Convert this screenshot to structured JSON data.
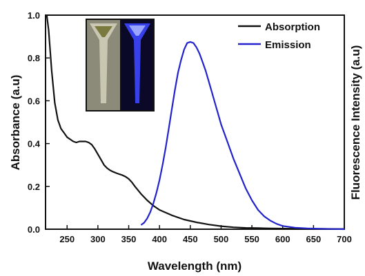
{
  "chart_data": {
    "type": "line",
    "xlabel": "Wavelength (nm)",
    "ylabel": "Absorbance (a.u)",
    "y2label": "Fluorescence Intensity (a.u)",
    "xlim": [
      215,
      700
    ],
    "ylim": [
      0.0,
      1.0
    ],
    "xticks": [
      250,
      300,
      350,
      400,
      450,
      500,
      550,
      600,
      650,
      700
    ],
    "yticks": [
      "0.0",
      "0.2",
      "0.4",
      "0.6",
      "0.8",
      "1.0"
    ],
    "legend_position": "top-right",
    "inset": "photo of two cuvettes: sample under daylight (left) and blue fluorescence under UV light (right)",
    "series": [
      {
        "name": "Absorption",
        "color": "#111111",
        "x": [
          217,
          220,
          225,
          230,
          235,
          240,
          245,
          250,
          255,
          260,
          265,
          270,
          275,
          280,
          285,
          290,
          295,
          300,
          305,
          310,
          315,
          320,
          325,
          330,
          335,
          340,
          345,
          350,
          355,
          360,
          370,
          380,
          390,
          400,
          420,
          440,
          460,
          480,
          500,
          520,
          540,
          560,
          580,
          600,
          650,
          700
        ],
        "y": [
          1.0,
          0.93,
          0.74,
          0.59,
          0.51,
          0.47,
          0.45,
          0.43,
          0.42,
          0.41,
          0.405,
          0.41,
          0.41,
          0.41,
          0.405,
          0.395,
          0.375,
          0.35,
          0.325,
          0.3,
          0.285,
          0.275,
          0.268,
          0.262,
          0.257,
          0.252,
          0.245,
          0.235,
          0.22,
          0.2,
          0.165,
          0.135,
          0.11,
          0.09,
          0.065,
          0.045,
          0.032,
          0.022,
          0.014,
          0.009,
          0.006,
          0.005,
          0.004,
          0.003,
          0.002,
          0.001
        ]
      },
      {
        "name": "Emission",
        "color": "#2222cc",
        "x": [
          370,
          375,
          380,
          385,
          390,
          395,
          400,
          405,
          410,
          415,
          420,
          425,
          430,
          435,
          440,
          445,
          450,
          455,
          460,
          465,
          470,
          475,
          480,
          485,
          490,
          495,
          500,
          510,
          520,
          530,
          540,
          550,
          560,
          570,
          580,
          590,
          600,
          620,
          640,
          660,
          680,
          700
        ],
        "y": [
          0.02,
          0.03,
          0.05,
          0.08,
          0.12,
          0.17,
          0.23,
          0.3,
          0.38,
          0.47,
          0.56,
          0.65,
          0.73,
          0.79,
          0.84,
          0.87,
          0.875,
          0.87,
          0.85,
          0.82,
          0.78,
          0.74,
          0.69,
          0.64,
          0.59,
          0.54,
          0.49,
          0.41,
          0.33,
          0.26,
          0.19,
          0.135,
          0.09,
          0.06,
          0.04,
          0.025,
          0.015,
          0.007,
          0.004,
          0.002,
          0.001,
          0.0
        ]
      }
    ]
  }
}
